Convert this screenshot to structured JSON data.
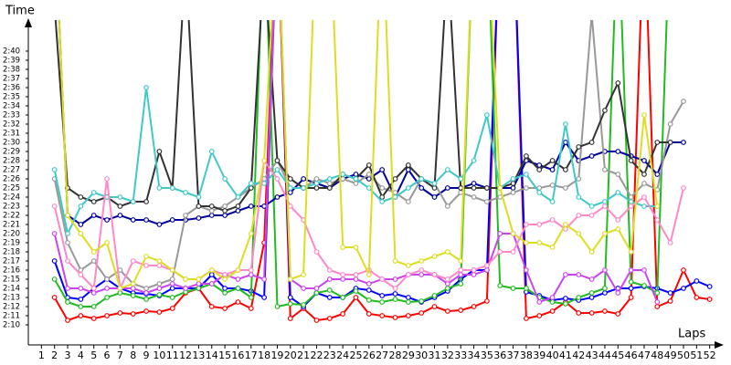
{
  "chart_data": {
    "type": "line",
    "title": "Time",
    "x_label": "Laps",
    "x": [
      1,
      2,
      3,
      4,
      5,
      6,
      7,
      8,
      9,
      10,
      11,
      12,
      13,
      14,
      15,
      16,
      17,
      18,
      19,
      20,
      21,
      22,
      23,
      24,
      25,
      26,
      27,
      28,
      29,
      30,
      31,
      32,
      33,
      34,
      35,
      36,
      37,
      38,
      39,
      40,
      41,
      42,
      43,
      44,
      45,
      46,
      47,
      48,
      49,
      50,
      51,
      52
    ],
    "xlim": [
      0,
      53
    ],
    "xticks": [
      1,
      2,
      3,
      4,
      5,
      6,
      7,
      8,
      9,
      10,
      11,
      12,
      13,
      14,
      15,
      16,
      17,
      18,
      19,
      20,
      21,
      22,
      23,
      24,
      25,
      26,
      27,
      28,
      29,
      30,
      31,
      32,
      33,
      34,
      35,
      36,
      37,
      38,
      39,
      40,
      41,
      42,
      43,
      44,
      45,
      46,
      47,
      48,
      49,
      50,
      51,
      52
    ],
    "ylim": [
      127.8,
      163.4
    ],
    "yticks": [
      {
        "value": 130,
        "label": "2:10"
      },
      {
        "value": 131,
        "label": "2:11"
      },
      {
        "value": 132,
        "label": "2:12"
      },
      {
        "value": 133,
        "label": "2:13"
      },
      {
        "value": 134,
        "label": "2:14"
      },
      {
        "value": 135,
        "label": "2:15"
      },
      {
        "value": 136,
        "label": "2:16"
      },
      {
        "value": 137,
        "label": "2:17"
      },
      {
        "value": 138,
        "label": "2:18"
      },
      {
        "value": 139,
        "label": "2:19"
      },
      {
        "value": 140,
        "label": "2:20"
      },
      {
        "value": 141,
        "label": "2:21"
      },
      {
        "value": 142,
        "label": "2:22"
      },
      {
        "value": 143,
        "label": "2:23"
      },
      {
        "value": 144,
        "label": "2:24"
      },
      {
        "value": 145,
        "label": "2:25"
      },
      {
        "value": 146,
        "label": "2:26"
      },
      {
        "value": 147,
        "label": "2:27"
      },
      {
        "value": 148,
        "label": "2:28"
      },
      {
        "value": 149,
        "label": "2:29"
      },
      {
        "value": 150,
        "label": "2:30"
      },
      {
        "value": 151,
        "label": "2:31"
      },
      {
        "value": 152,
        "label": "2:32"
      },
      {
        "value": 153,
        "label": "2:33"
      },
      {
        "value": 154,
        "label": "2:34"
      },
      {
        "value": 155,
        "label": "2:35"
      },
      {
        "value": 156,
        "label": "2:36"
      },
      {
        "value": 157,
        "label": "2:37"
      },
      {
        "value": 158,
        "label": "2:38"
      },
      {
        "value": 159,
        "label": "2:39"
      },
      {
        "value": 160,
        "label": "2:40"
      }
    ],
    "grid": false,
    "series": [
      {
        "color": "#ff0000",
        "values": [
          null,
          133,
          130.5,
          131,
          130.7,
          131,
          131.3,
          131.2,
          131.5,
          131.4,
          131.8,
          133.5,
          134,
          132,
          131.8,
          132.5,
          131.8,
          139,
          175,
          130.7,
          131.8,
          130.5,
          130.7,
          131.2,
          133,
          131.2,
          131,
          130.8,
          131,
          131.3,
          132,
          131.5,
          131.6,
          132,
          132.6,
          175,
          175,
          130.7,
          131,
          131.5,
          132.5,
          131.3,
          131.3,
          131.5,
          131.2,
          133,
          175,
          132,
          132.6,
          136,
          133,
          132.8
        ]
      },
      {
        "color": "#0000ff",
        "values": [
          null,
          137,
          133,
          132.8,
          134,
          135,
          134,
          133.5,
          133.4,
          133.2,
          134,
          134,
          134,
          135.5,
          134,
          134,
          133.7,
          133,
          175,
          133,
          132,
          133.5,
          133,
          133,
          134,
          133.8,
          133.2,
          133.4,
          133,
          132.5,
          133,
          133.7,
          135,
          136,
          136,
          175,
          175,
          133.6,
          133.2,
          132.7,
          132.9,
          132.7,
          133,
          133.5,
          134,
          134,
          134.2,
          134,
          133.5,
          134,
          134.8,
          134.2
        ]
      },
      {
        "color": "#22bb22",
        "values": [
          null,
          135,
          132.5,
          132,
          132,
          133,
          133.5,
          133.2,
          132.8,
          133.3,
          133,
          133.6,
          134,
          134.5,
          133.5,
          134,
          133,
          175,
          132,
          132.3,
          132.2,
          133.5,
          133.8,
          133,
          133.7,
          132.7,
          132.5,
          132.8,
          132.5,
          132.6,
          133.2,
          134,
          134.5,
          175,
          175,
          134.3,
          134,
          134,
          133,
          132.5,
          132.3,
          133,
          133.5,
          134,
          175,
          134.7,
          134.3,
          133.5,
          175,
          null,
          null,
          null
        ]
      },
      {
        "color": "#00009a",
        "values": [
          null,
          175,
          142,
          141,
          142,
          141.5,
          142,
          141.5,
          141.5,
          141,
          141.5,
          141.5,
          141.7,
          142,
          142,
          142.5,
          143,
          143,
          144,
          144.5,
          146,
          145.5,
          145,
          146,
          146.5,
          146,
          147,
          144,
          147,
          145,
          144,
          145,
          145,
          145.5,
          145,
          145,
          145,
          148,
          147.5,
          147,
          150,
          148,
          148.5,
          149,
          149,
          148.5,
          148,
          146.5,
          150,
          150,
          null,
          null
        ]
      },
      {
        "color": "#999999",
        "values": [
          null,
          146,
          139,
          136,
          137,
          135,
          136,
          134.5,
          134,
          134.5,
          135,
          142,
          143,
          142.5,
          143,
          144,
          145,
          146,
          148,
          145,
          145,
          146,
          145.5,
          146,
          145.5,
          146.5,
          145,
          144.5,
          143.5,
          146,
          145.5,
          143,
          144.5,
          144,
          143.5,
          144,
          144.5,
          145,
          145,
          145.3,
          145,
          146,
          164,
          147,
          146.5,
          144,
          145.5,
          144.8,
          152,
          154.5,
          null,
          null
        ]
      },
      {
        "color": "#333333",
        "values": [
          null,
          165,
          145,
          144,
          143.5,
          144,
          143,
          143.5,
          143.5,
          149,
          145,
          170,
          143,
          143,
          142.5,
          143,
          145,
          170,
          148,
          146,
          145,
          145,
          145,
          146.5,
          146,
          147.5,
          144,
          146,
          147.5,
          146,
          145,
          170,
          145,
          145,
          145,
          145,
          145.5,
          148.5,
          147,
          148,
          147,
          149.5,
          150,
          153.5,
          156.5,
          148,
          146.5,
          150,
          150,
          null,
          null,
          null
        ]
      },
      {
        "color": "#40c8c8",
        "values": [
          null,
          147,
          140,
          143,
          144.5,
          144,
          144,
          143.5,
          156,
          145,
          145,
          144.5,
          144,
          149,
          146,
          144,
          145.5,
          145.5,
          147,
          145,
          145,
          145.5,
          146,
          146.5,
          146,
          145,
          143.5,
          144,
          145,
          146,
          145.5,
          147,
          146,
          148,
          153,
          145,
          146,
          146.5,
          144.5,
          143.5,
          152,
          144,
          143,
          143.5,
          144.5,
          143.5,
          143,
          143,
          null,
          null,
          null,
          null
        ]
      },
      {
        "color": "#cc44ee",
        "values": [
          null,
          140,
          134,
          134,
          133.5,
          134,
          134,
          134,
          133.5,
          134,
          134.5,
          134,
          134.5,
          134.5,
          135.5,
          135,
          135.5,
          135,
          175,
          135,
          134,
          134,
          135,
          135,
          135,
          134.5,
          135,
          135,
          135.5,
          135.5,
          135.5,
          134.5,
          135.5,
          135.5,
          136,
          140,
          140,
          136,
          132.5,
          133,
          135.5,
          135.5,
          135,
          136,
          133.5,
          136,
          136,
          132.5,
          null,
          null,
          null,
          null
        ]
      },
      {
        "color": "#ff88c8",
        "values": [
          null,
          143,
          137,
          135.5,
          134,
          146,
          134,
          137,
          136.5,
          136.5,
          136,
          135,
          135,
          136,
          135.5,
          136,
          136,
          148,
          146,
          143,
          141.5,
          138,
          136,
          135.5,
          135.5,
          136,
          135,
          134,
          135.5,
          136,
          135.5,
          135,
          136,
          136,
          136.5,
          138,
          138,
          141,
          141,
          141.5,
          140.5,
          142,
          142,
          143,
          141.5,
          143,
          144,
          141.5,
          139,
          145,
          null,
          null
        ]
      },
      {
        "color": "#dddd22",
        "values": [
          null,
          175,
          142,
          140,
          138,
          139,
          134,
          134.5,
          137.5,
          137,
          136,
          135,
          135,
          136,
          135,
          136,
          140,
          148,
          175,
          135,
          135.5,
          175,
          175,
          138.5,
          138.5,
          135.5,
          175,
          137,
          136.5,
          137,
          137.5,
          138,
          137,
          175,
          175,
          145,
          140,
          139,
          139,
          138.5,
          141,
          140,
          138,
          140,
          140.5,
          138,
          153,
          143,
          null,
          null,
          null,
          null
        ]
      }
    ]
  }
}
